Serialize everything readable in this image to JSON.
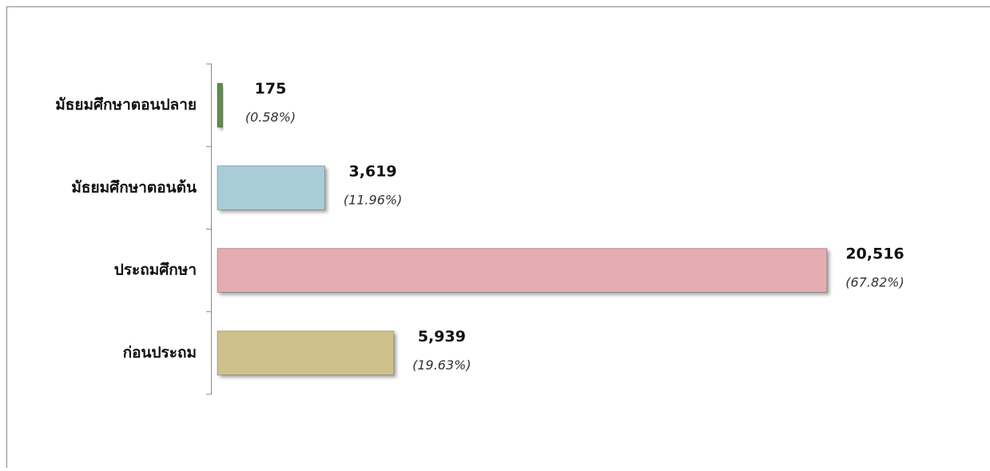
{
  "chart_data": {
    "type": "barh",
    "categories": [
      "มัธยมศึกษาตอนปลาย",
      "มัธยมศึกษาตอนต้น",
      "ประถมศึกษา",
      "ก่อนประถม"
    ],
    "values": [
      175,
      3619,
      20516,
      5939
    ],
    "value_labels": [
      "175",
      "3,619",
      "20,516",
      "5,939"
    ],
    "share_labels": [
      "(0.58%)",
      "(11.96%)",
      "(67.82%)",
      "(19.63%)"
    ],
    "colors": [
      "#5e8d4c",
      "#a9cdd8",
      "#e3adb1",
      "#cfc18c"
    ]
  }
}
